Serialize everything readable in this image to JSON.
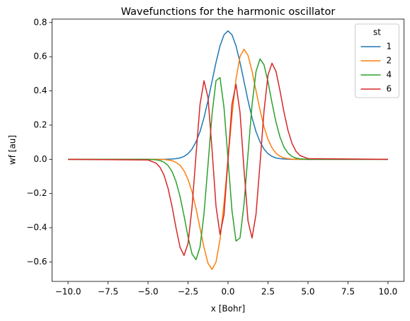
{
  "chart_data": {
    "type": "line",
    "title": "Wavefunctions for the harmonic oscillator",
    "x_label": "x [Bohr]",
    "y_label": "wf [au]",
    "x": [
      -10,
      -5,
      -4.5,
      -4.25,
      -4,
      -3.75,
      -3.5,
      -3.25,
      -3,
      -2.75,
      -2.5,
      -2.25,
      -2,
      -1.75,
      -1.5,
      -1.25,
      -1,
      -0.75,
      -0.5,
      -0.25,
      0,
      0.25,
      0.5,
      0.75,
      1,
      1.25,
      1.5,
      1.75,
      2,
      2.25,
      2.5,
      2.75,
      3,
      3.25,
      3.5,
      3.75,
      4,
      4.25,
      4.5,
      5,
      10
    ],
    "series": [
      {
        "name": "1",
        "color": "#1f77b4",
        "values": [
          0,
          0,
          0,
          0,
          0,
          0.001,
          0.002,
          0.004,
          0.008,
          0.017,
          0.033,
          0.06,
          0.102,
          0.162,
          0.244,
          0.344,
          0.456,
          0.567,
          0.663,
          0.728,
          0.751,
          0.728,
          0.663,
          0.567,
          0.456,
          0.344,
          0.244,
          0.162,
          0.102,
          0.06,
          0.033,
          0.017,
          0.008,
          0.004,
          0.002,
          0.001,
          0,
          0,
          0,
          0,
          0
        ]
      },
      {
        "name": "2",
        "color": "#ff7f0e",
        "values": [
          0,
          0,
          0,
          -0.001,
          -0.001,
          -0.004,
          -0.008,
          -0.018,
          -0.035,
          -0.067,
          -0.117,
          -0.19,
          -0.288,
          -0.402,
          -0.517,
          -0.608,
          -0.644,
          -0.601,
          -0.469,
          -0.257,
          0,
          0.257,
          0.469,
          0.601,
          0.644,
          0.608,
          0.517,
          0.402,
          0.288,
          0.19,
          0.117,
          0.067,
          0.035,
          0.018,
          0.008,
          0.004,
          0.001,
          0.001,
          0,
          0,
          0
        ]
      },
      {
        "name": "4",
        "color": "#2ca02c",
        "values": [
          0,
          0,
          -0.003,
          -0.007,
          -0.017,
          -0.036,
          -0.071,
          -0.13,
          -0.217,
          -0.33,
          -0.453,
          -0.553,
          -0.587,
          -0.513,
          -0.317,
          -0.031,
          0.263,
          0.46,
          0.478,
          0.302,
          0,
          -0.302,
          -0.478,
          -0.46,
          -0.263,
          0.031,
          0.317,
          0.513,
          0.587,
          0.553,
          0.453,
          0.33,
          0.217,
          0.13,
          0.071,
          0.036,
          0.017,
          0.007,
          0.003,
          0,
          0
        ]
      },
      {
        "name": "6",
        "color": "#d62728",
        "values": [
          0,
          -0.004,
          -0.022,
          -0.047,
          -0.093,
          -0.169,
          -0.275,
          -0.401,
          -0.514,
          -0.562,
          -0.493,
          -0.282,
          0.026,
          0.321,
          0.46,
          0.36,
          0.059,
          -0.275,
          -0.439,
          -0.323,
          0,
          0.323,
          0.439,
          0.275,
          -0.059,
          -0.36,
          -0.46,
          -0.321,
          -0.026,
          0.282,
          0.493,
          0.562,
          0.514,
          0.401,
          0.275,
          0.169,
          0.093,
          0.047,
          0.022,
          0.004,
          0
        ]
      }
    ],
    "xlim": [
      -11,
      11
    ],
    "ylim": [
      -0.714,
      0.82
    ],
    "xticks": [
      {
        "value": -10,
        "label": "−10.0"
      },
      {
        "value": -7.5,
        "label": "−7.5"
      },
      {
        "value": -5,
        "label": "−5.0"
      },
      {
        "value": -2.5,
        "label": "−2.5"
      },
      {
        "value": 0,
        "label": "0.0"
      },
      {
        "value": 2.5,
        "label": "2.5"
      },
      {
        "value": 5,
        "label": "5.0"
      },
      {
        "value": 7.5,
        "label": "7.5"
      },
      {
        "value": 10,
        "label": "10.0"
      }
    ],
    "yticks": [
      {
        "value": -0.6,
        "label": "−0.6"
      },
      {
        "value": -0.4,
        "label": "−0.4"
      },
      {
        "value": -0.2,
        "label": "−0.2"
      },
      {
        "value": 0,
        "label": "0.0"
      },
      {
        "value": 0.2,
        "label": "0.2"
      },
      {
        "value": 0.4,
        "label": "0.4"
      },
      {
        "value": 0.6,
        "label": "0.6"
      },
      {
        "value": 0.8,
        "label": "0.8"
      }
    ],
    "legend_title": "st",
    "legend": "upper right",
    "grid": false
  }
}
